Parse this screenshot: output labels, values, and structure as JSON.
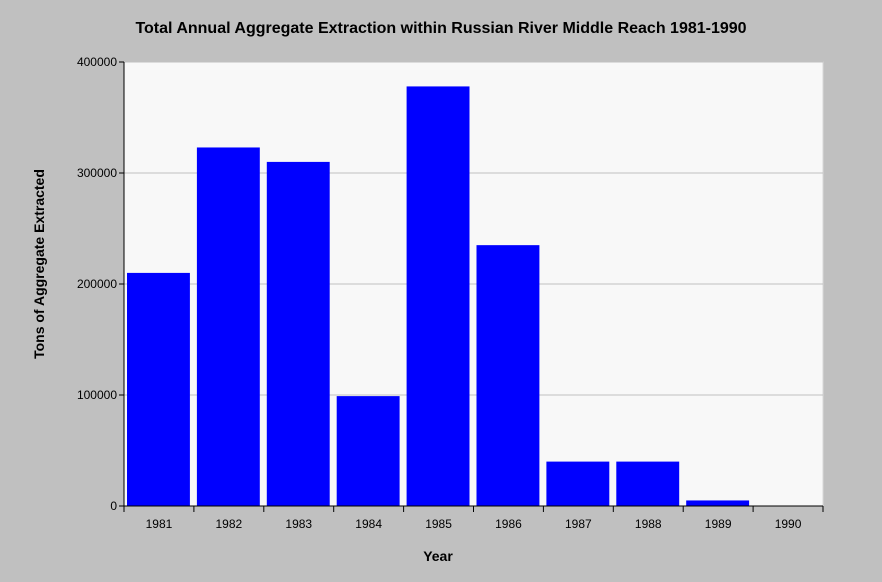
{
  "chart_data": {
    "type": "bar",
    "title": "Total Annual Aggregate Extraction within Russian River Middle Reach 1981-1990",
    "xlabel": "Year",
    "ylabel": "Tons of Aggregate Extracted",
    "categories": [
      "1981",
      "1982",
      "1983",
      "1984",
      "1985",
      "1986",
      "1987",
      "1988",
      "1989",
      "1990"
    ],
    "values": [
      210000,
      323000,
      310000,
      99000,
      378000,
      235000,
      40000,
      40000,
      5000,
      0
    ],
    "ylim": [
      0,
      400000
    ],
    "yticks": [
      "0",
      "100000",
      "200000",
      "300000",
      "400000"
    ],
    "grid": true,
    "legend": "none",
    "colors": {
      "bar": "#0000ff",
      "plot_background": "#f8f8f8",
      "page_background": "#c0c0c0",
      "gridline": "#c0c0c0"
    }
  }
}
